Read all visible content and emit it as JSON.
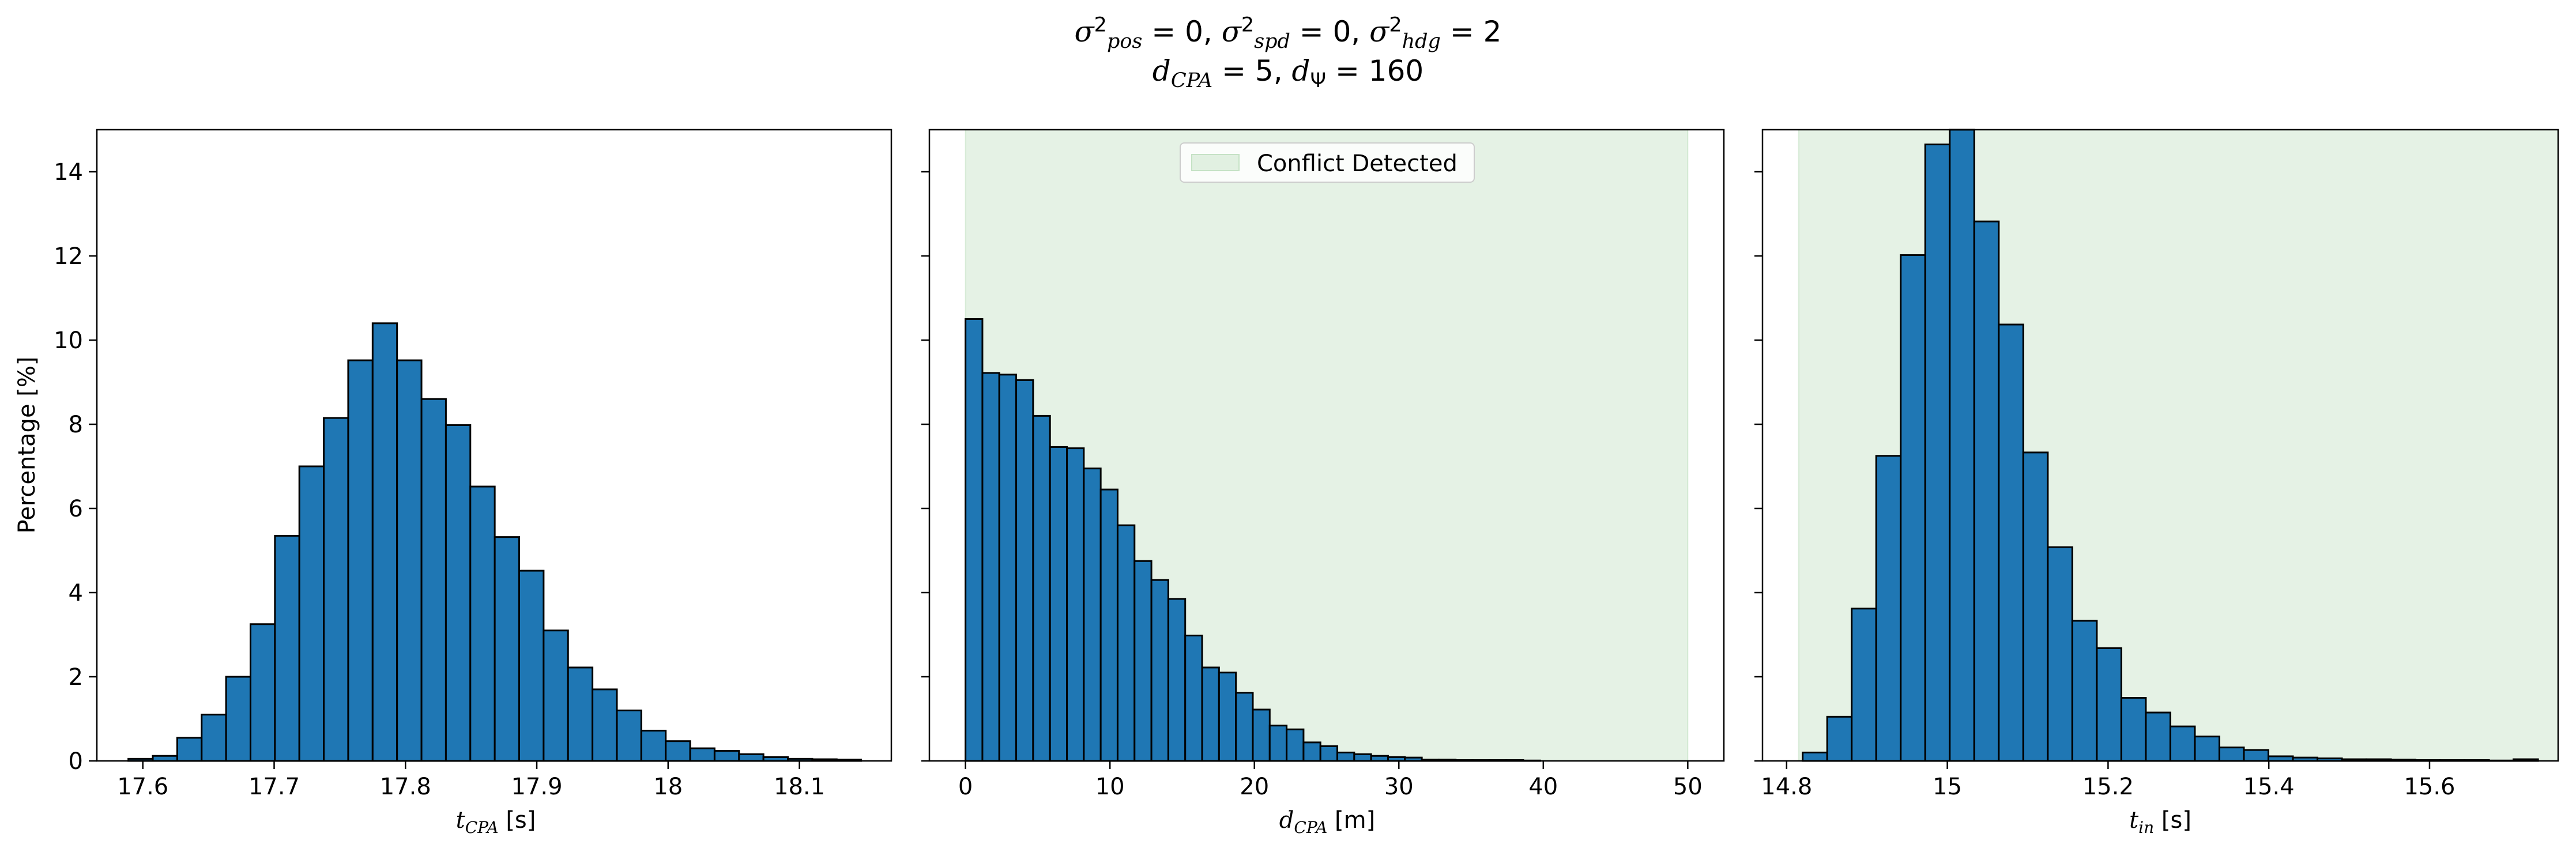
{
  "suptitle": {
    "line1": "σ²pos = 0, σ²spd = 0, σ²hdg = 2",
    "line2": "dCPA = 5, dΨ = 160"
  },
  "y_label": "Percentage [%]",
  "legend": {
    "label": "Conflict Detected"
  },
  "colors": {
    "bar": "#1f77b4",
    "bar_edge": "#000000",
    "shade": "#008000"
  },
  "chart_data": [
    {
      "type": "bar",
      "xlabel": "tCPA [s]",
      "ylabel": "Percentage [%]",
      "xlim": [
        17.565,
        18.17
      ],
      "ylim": [
        0,
        15
      ],
      "xticks": [
        17.6,
        17.7,
        17.8,
        17.9,
        18.0,
        18.1
      ],
      "yticks": [
        0,
        2,
        4,
        6,
        8,
        10,
        12,
        14
      ],
      "bin_start": 17.589,
      "bin_width": 0.0186,
      "values": [
        0.05,
        0.12,
        0.55,
        1.1,
        2.0,
        3.25,
        5.35,
        7.0,
        8.15,
        9.52,
        10.4,
        9.52,
        8.6,
        7.98,
        6.52,
        5.32,
        4.52,
        3.1,
        2.22,
        1.7,
        1.2,
        0.72,
        0.47,
        0.3,
        0.24,
        0.16,
        0.09,
        0.05,
        0.04,
        0.03
      ]
    },
    {
      "type": "bar",
      "xlabel": "dCPA [m]",
      "xlim": [
        -2.5,
        52.5
      ],
      "ylim": [
        0,
        15
      ],
      "xticks": [
        0,
        10,
        20,
        30,
        40,
        50
      ],
      "yticks": [
        0,
        2,
        4,
        6,
        8,
        10,
        12,
        14
      ],
      "bin_start": 0,
      "bin_width": 1.17,
      "shade": {
        "from": 0,
        "to": 50,
        "label": "Conflict Detected"
      },
      "values": [
        10.5,
        9.22,
        9.18,
        9.05,
        8.2,
        7.46,
        7.43,
        6.95,
        6.45,
        5.6,
        4.75,
        4.3,
        3.85,
        2.98,
        2.22,
        2.1,
        1.62,
        1.22,
        0.84,
        0.75,
        0.44,
        0.35,
        0.2,
        0.16,
        0.12,
        0.09,
        0.08,
        0.03,
        0.03,
        0.02,
        0.02,
        0.02,
        0.02,
        0.01
      ]
    },
    {
      "type": "bar",
      "xlabel": "tin [s]",
      "xlim": [
        14.77,
        15.76
      ],
      "ylim": [
        0,
        15
      ],
      "xticks": [
        14.8,
        15.0,
        15.2,
        15.4,
        15.6
      ],
      "yticks": [
        0,
        2,
        4,
        6,
        8,
        10,
        12,
        14
      ],
      "bin_start": 14.82,
      "bin_width": 0.0305,
      "shade": {
        "from": 14.815,
        "to": 16.0,
        "label": "Conflict Detected"
      },
      "values": [
        0.2,
        1.05,
        3.62,
        7.25,
        12.02,
        14.65,
        15.12,
        12.82,
        10.37,
        7.33,
        5.08,
        3.33,
        2.68,
        1.5,
        1.15,
        0.82,
        0.58,
        0.32,
        0.26,
        0.11,
        0.08,
        0.06,
        0.04,
        0.04,
        0.03,
        0.02,
        0.02,
        0.02,
        0.01,
        0.04
      ]
    }
  ]
}
